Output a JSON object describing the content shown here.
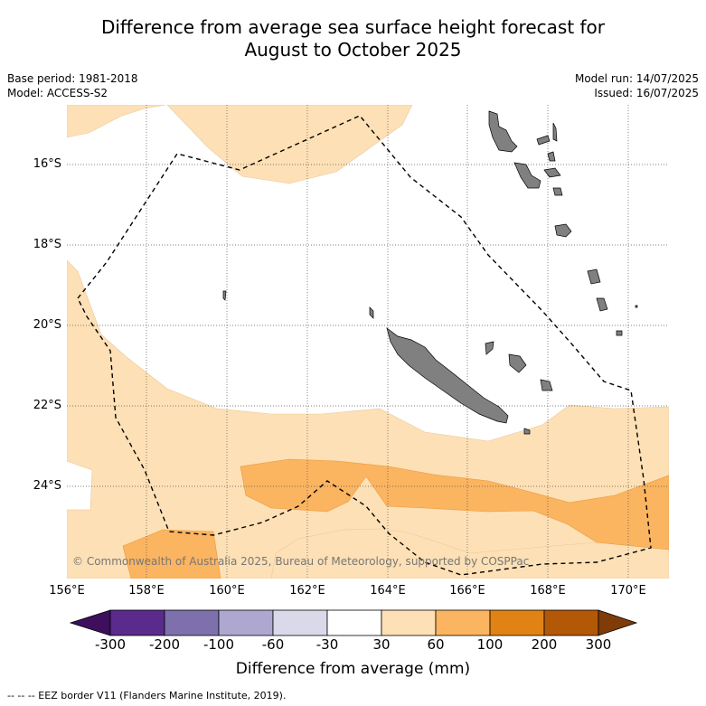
{
  "title_line1": "Difference from average sea surface height forecast for",
  "title_line2": "August to October 2025",
  "meta_left": [
    "Base period: 1981-2018",
    "Model: ACCESS-S2"
  ],
  "meta_right": [
    "Model run: 14/07/2025",
    "Issued: 16/07/2025"
  ],
  "copyright": "© Commonwealth of Australia 2025, Bureau of Meteorology, supported by COSPPac",
  "axes": {
    "lat_labels": [
      "16°S",
      "18°S",
      "20°S",
      "22°S",
      "24°S"
    ],
    "lat_values": [
      -16,
      -18,
      -20,
      -22,
      -24
    ],
    "lon_labels": [
      "156°E",
      "158°E",
      "160°E",
      "162°E",
      "164°E",
      "166°E",
      "168°E",
      "170°E"
    ],
    "lon_values": [
      156,
      158,
      160,
      162,
      164,
      166,
      168,
      170
    ]
  },
  "colorbar": {
    "title": "Difference from average (mm)",
    "ticks": [
      "-300",
      "-200",
      "-100",
      "-60",
      "-30",
      "30",
      "60",
      "100",
      "200",
      "300"
    ],
    "colors": [
      "#3d0f5c",
      "#5a2a8c",
      "#7e70ad",
      "#aea7d0",
      "#d9d9ea",
      "#ffffff",
      "#fde0b5",
      "#fbb460",
      "#e08214",
      "#b35806",
      "#7f3b08"
    ]
  },
  "legend_footer": "--  --  -- EEZ border V11 (Flanders Marine Institute, 2019).",
  "colors": {
    "land": "#808080",
    "contour_30_60": "#fde0b5",
    "contour_60_100": "#fbb460"
  }
}
